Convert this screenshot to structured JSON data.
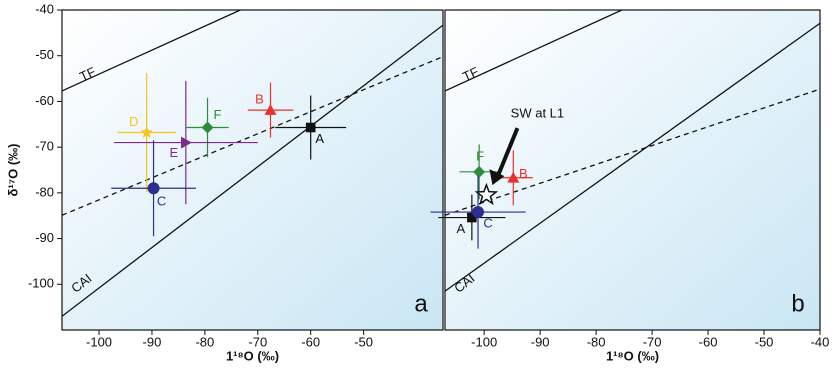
{
  "chart_data": [
    {
      "type": "scatter",
      "panel_label": "a",
      "xlabel": "1¹⁸O (‰)",
      "ylabel": "δ¹⁷O (‰)",
      "xlim": [
        -107,
        -35
      ],
      "ylim": [
        -110,
        -40
      ],
      "xticks": [
        -100,
        -90,
        -80,
        -70,
        -60,
        -50
      ],
      "yticks": [
        -40,
        -50,
        -60,
        -70,
        -80,
        -90,
        -100
      ],
      "reference_lines": [
        {
          "name": "TF",
          "x": [
            -107,
            -73.3
          ],
          "y": [
            -57.7,
            -40
          ],
          "dash": false
        },
        {
          "name": "CAI",
          "x": [
            -107,
            -35
          ],
          "y": [
            -107,
            -43.3
          ],
          "dash": false
        },
        {
          "x": [
            -107,
            -35
          ],
          "y": [
            -84.9,
            -50.2
          ],
          "dash": true
        }
      ],
      "series": [
        {
          "name": "B",
          "color": "#e8312a",
          "marker": "triangle",
          "x": [
            -67.6
          ],
          "values": [
            -61.9
          ],
          "x_err": [
            4.3
          ],
          "y_err": [
            6
          ]
        },
        {
          "name": "A",
          "color": "#111111",
          "marker": "square",
          "x": [
            -60
          ],
          "values": [
            -65.7
          ],
          "x_err": [
            6.7
          ],
          "y_err": [
            7
          ]
        },
        {
          "name": "F",
          "color": "#2e8b3a",
          "marker": "diamond",
          "x": [
            -79.5
          ],
          "values": [
            -65.7
          ],
          "x_err": [
            4
          ],
          "y_err": [
            6.5
          ]
        },
        {
          "name": "D",
          "color": "#f5c518",
          "marker": "star",
          "x": [
            -91
          ],
          "values": [
            -66.8
          ],
          "x_err": [
            5.5
          ],
          "y_err": [
            13
          ]
        },
        {
          "name": "E",
          "color": "#7b2d8e",
          "marker": "triangle-right",
          "x": [
            -83.6
          ],
          "values": [
            -69
          ],
          "x_err": [
            13.6
          ],
          "y_err": [
            13.5
          ]
        },
        {
          "name": "C",
          "color": "#2b2f8f",
          "marker": "circle",
          "x": [
            -89.7
          ],
          "values": [
            -79
          ],
          "x_err": [
            8
          ],
          "y_err": [
            10.5
          ]
        }
      ]
    },
    {
      "type": "scatter",
      "panel_label": "b",
      "xlabel": "1¹⁸O (‰)",
      "xlim": [
        -107,
        -40
      ],
      "ylim": [
        -110,
        -40
      ],
      "xticks": [
        -100,
        -90,
        -80,
        -70,
        -60,
        -50,
        -40
      ],
      "reference_lines": [
        {
          "name": "TF",
          "x": [
            -107,
            -75.4
          ],
          "y": [
            -57.7,
            -40
          ],
          "dash": false
        },
        {
          "name": "CAI",
          "x": [
            -107,
            -40
          ],
          "y": [
            -101.5,
            -42.9
          ],
          "dash": false
        },
        {
          "x": [
            -107,
            -40
          ],
          "y": [
            -84.9,
            -57.3
          ],
          "dash": true
        }
      ],
      "series": [
        {
          "name": "F",
          "color": "#2e8b3a",
          "marker": "diamond",
          "x": [
            -100.9
          ],
          "values": [
            -75.4
          ],
          "x_err": [
            3.5
          ],
          "y_err": [
            6
          ]
        },
        {
          "name": "B",
          "color": "#e8312a",
          "marker": "triangle",
          "x": [
            -94.8
          ],
          "values": [
            -76.7
          ],
          "x_err": [
            3.5
          ],
          "y_err": [
            6
          ]
        },
        {
          "name": "A",
          "color": "#111111",
          "marker": "square",
          "x": [
            -102.2
          ],
          "values": [
            -85.4
          ],
          "x_err": [
            6
          ],
          "y_err": [
            5
          ]
        },
        {
          "name": "C",
          "color": "#2b2f8f",
          "marker": "circle",
          "x": [
            -101.1
          ],
          "values": [
            -84.2
          ],
          "x_err": [
            8.5
          ],
          "y_err": [
            8
          ]
        },
        {
          "name": "SW at L1",
          "color": "#111111",
          "marker": "star-open",
          "x": [
            -99.6
          ],
          "values": [
            -80.5
          ]
        }
      ]
    }
  ]
}
